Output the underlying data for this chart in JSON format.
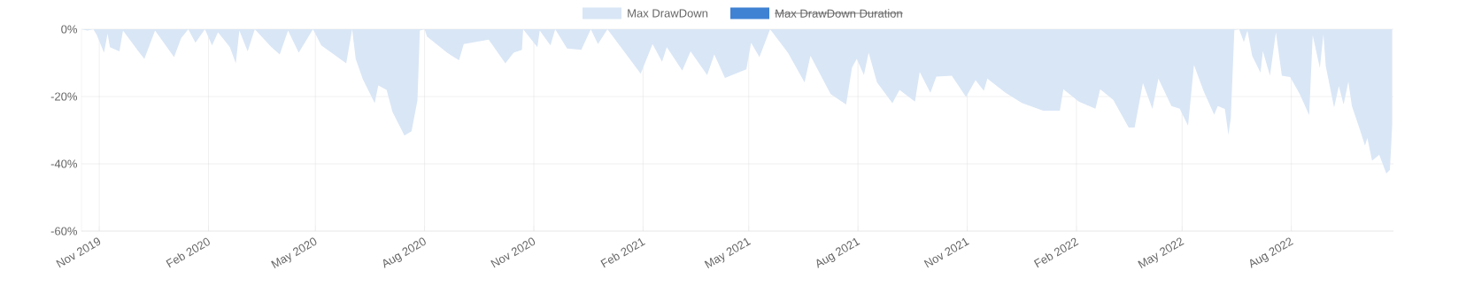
{
  "chart_data": {
    "type": "area",
    "x": [
      "2019-10-17",
      "2019-10-22",
      "2019-10-27",
      "2019-10-30",
      "2019-11-05",
      "2019-11-08",
      "2019-11-10",
      "2019-11-18",
      "2019-11-21",
      "2019-12-04",
      "2019-12-09",
      "2019-12-18",
      "2020-01-03",
      "2020-01-09",
      "2020-01-15",
      "2020-01-21",
      "2020-01-29",
      "2020-02-04",
      "2020-02-09",
      "2020-02-19",
      "2020-02-24",
      "2020-02-27",
      "2020-03-05",
      "2020-03-11",
      "2020-03-25",
      "2020-04-01",
      "2020-04-08",
      "2020-04-17",
      "2020-04-29",
      "2020-05-06",
      "2020-05-27",
      "2020-06-01",
      "2020-06-04",
      "2020-06-10",
      "2020-06-20",
      "2020-06-23",
      "2020-06-30",
      "2020-07-05",
      "2020-07-15",
      "2020-07-21",
      "2020-07-26",
      "2020-07-28",
      "2020-08-01",
      "2020-08-03",
      "2020-08-20",
      "2020-08-30",
      "2020-09-03",
      "2020-09-24",
      "2020-10-08",
      "2020-10-15",
      "2020-10-22",
      "2020-10-23",
      "2020-11-04",
      "2020-11-06",
      "2020-11-15",
      "2020-11-19",
      "2020-11-29",
      "2020-12-11",
      "2020-12-19",
      "2020-12-25",
      "2021-01-02",
      "2021-01-15",
      "2021-01-30",
      "2021-02-09",
      "2021-02-17",
      "2021-02-21",
      "2021-03-06",
      "2021-03-13",
      "2021-03-27",
      "2021-04-02",
      "2021-04-11",
      "2021-04-29",
      "2021-05-03",
      "2021-05-10",
      "2021-05-19",
      "2021-06-03",
      "2021-06-17",
      "2021-06-22",
      "2021-07-09",
      "2021-07-22",
      "2021-07-27",
      "2021-07-31",
      "2021-08-06",
      "2021-08-10",
      "2021-08-17",
      "2021-08-30",
      "2021-09-05",
      "2021-09-18",
      "2021-09-22",
      "2021-10-01",
      "2021-10-06",
      "2021-10-19",
      "2021-10-31",
      "2021-11-08",
      "2021-11-15",
      "2021-11-18",
      "2021-12-03",
      "2021-12-17",
      "2022-01-04",
      "2022-01-18",
      "2022-01-21",
      "2022-02-03",
      "2022-02-17",
      "2022-02-21",
      "2022-03-04",
      "2022-03-17",
      "2022-03-22",
      "2022-03-29",
      "2022-04-06",
      "2022-04-11",
      "2022-04-22",
      "2022-04-29",
      "2022-05-06",
      "2022-05-11",
      "2022-05-19",
      "2022-05-28",
      "2022-05-31",
      "2022-06-06",
      "2022-06-09",
      "2022-06-11",
      "2022-06-14",
      "2022-06-18",
      "2022-06-22",
      "2022-06-25",
      "2022-06-29",
      "2022-07-06",
      "2022-07-08",
      "2022-07-14",
      "2022-07-19",
      "2022-07-24",
      "2022-07-31",
      "2022-08-08",
      "2022-08-16",
      "2022-08-19",
      "2022-08-25",
      "2022-08-28",
      "2022-08-30",
      "2022-09-06",
      "2022-09-10",
      "2022-09-14",
      "2022-09-18",
      "2022-09-21",
      "2022-09-28",
      "2022-10-02",
      "2022-10-04",
      "2022-10-08",
      "2022-10-14",
      "2022-10-20",
      "2022-10-23",
      "2022-10-25"
    ],
    "series": [
      {
        "name": "Max DrawDown",
        "color": "#d9e6f6",
        "values": [
          0,
          -0.4,
          0,
          -1.8,
          -7,
          -1.3,
          -5.3,
          -6.6,
          -0.4,
          -6.6,
          -8.8,
          -0.4,
          -8.3,
          -2.6,
          0,
          -4,
          0,
          -4.8,
          -0.9,
          -5.3,
          -10.1,
          -0.4,
          -6.6,
          0,
          -5.3,
          -7.5,
          -0.4,
          -7,
          0,
          -4.8,
          -10.1,
          0,
          -8.8,
          -14.9,
          -22,
          -16.7,
          -18,
          -24.6,
          -31.6,
          -30.3,
          -21.1,
          -0.4,
          0,
          -2.2,
          -7,
          -9.2,
          -4.4,
          -3.1,
          -10.1,
          -7,
          -6.1,
          0,
          -5.3,
          -0.4,
          -4.8,
          0,
          -5.7,
          -6.1,
          0,
          -4.4,
          0,
          -6.1,
          -13.2,
          -4.4,
          -9.7,
          -5.3,
          -12.3,
          -6.6,
          -13.6,
          -7.5,
          -14.5,
          -11.9,
          -4,
          -8.3,
          0,
          -7,
          -15.8,
          -7.9,
          -19.3,
          -22.4,
          -11.4,
          -8.8,
          -13.6,
          -7,
          -15.8,
          -22,
          -18,
          -21.5,
          -12.7,
          -18.9,
          -14.1,
          -13.8,
          -20.1,
          -15.1,
          -18.3,
          -14.7,
          -18.8,
          -21.9,
          -24.2,
          -24.2,
          -17.8,
          -21.5,
          -23.6,
          -17.8,
          -21,
          -29.2,
          -29.2,
          -16,
          -23.7,
          -14.7,
          -22.8,
          -23.6,
          -28.7,
          -10.6,
          -18.3,
          -25.4,
          -22.8,
          -23.7,
          -31.4,
          -26.4,
          -0.2,
          0,
          -3.8,
          -0.4,
          -7.9,
          -12.9,
          -6.5,
          -13.8,
          -0.9,
          -13.8,
          -14.2,
          -19.2,
          -25.5,
          -1.8,
          -11.5,
          -1.5,
          -11,
          -23.3,
          -16.9,
          -22.4,
          -15.6,
          -22.8,
          -30.1,
          -34.6,
          -32.3,
          -39.1,
          -37.3,
          -42.9,
          -41.8,
          -28.3
        ]
      },
      {
        "name": "Max DrawDown Duration",
        "color": "#3f82d4",
        "values": [
          null,
          null,
          null,
          null,
          null,
          null,
          null,
          null,
          null,
          null,
          null,
          null,
          null,
          null,
          null,
          null,
          null,
          null,
          null,
          null,
          null,
          null,
          null,
          null,
          null,
          null,
          null,
          null,
          null,
          null,
          null,
          null,
          null,
          null,
          null,
          null,
          null,
          null,
          null,
          null,
          null,
          null,
          null,
          null,
          null,
          null,
          null,
          null,
          null,
          null,
          null,
          null,
          null,
          null,
          null,
          null,
          null,
          null,
          null,
          null,
          null,
          null,
          null,
          null,
          null,
          null,
          null,
          null,
          null,
          null,
          null,
          null,
          null,
          null,
          null,
          null,
          null,
          null,
          null,
          null,
          null,
          null,
          null,
          null,
          null,
          null,
          null,
          null,
          null,
          null,
          null,
          null,
          null,
          null,
          null,
          null,
          null,
          null,
          null,
          null,
          null,
          null,
          null,
          null,
          null,
          null,
          null,
          null,
          null,
          null,
          null,
          null,
          null,
          null,
          null,
          null,
          null,
          null,
          null,
          null,
          null,
          null,
          null,
          null,
          null,
          null,
          null,
          null,
          null,
          null,
          null,
          null,
          null,
          null,
          null,
          null,
          null,
          null,
          null,
          null,
          null,
          null,
          null,
          null,
          null,
          null,
          null,
          null,
          null,
          null
        ]
      }
    ],
    "xlim": [
      "2019-10-17",
      "2022-10-26"
    ],
    "xticks": [
      {
        "value": "2019-11-01",
        "label": "Nov 2019"
      },
      {
        "value": "2020-02-01",
        "label": "Feb 2020"
      },
      {
        "value": "2020-05-01",
        "label": "May 2020"
      },
      {
        "value": "2020-08-01",
        "label": "Aug 2020"
      },
      {
        "value": "2020-11-01",
        "label": "Nov 2020"
      },
      {
        "value": "2021-02-01",
        "label": "Feb 2021"
      },
      {
        "value": "2021-05-01",
        "label": "May 2021"
      },
      {
        "value": "2021-08-01",
        "label": "Aug 2021"
      },
      {
        "value": "2021-11-01",
        "label": "Nov 2021"
      },
      {
        "value": "2022-02-01",
        "label": "Feb 2022"
      },
      {
        "value": "2022-05-01",
        "label": "May 2022"
      },
      {
        "value": "2022-08-01",
        "label": "Aug 2022"
      }
    ],
    "ylim": [
      -60,
      0
    ],
    "yticks": [
      {
        "value": -60,
        "label": "-60%"
      },
      {
        "value": -40,
        "label": "-40%"
      },
      {
        "value": -20,
        "label": "-20%"
      },
      {
        "value": 0,
        "label": "0%"
      }
    ],
    "grid": true,
    "legend": "top"
  }
}
